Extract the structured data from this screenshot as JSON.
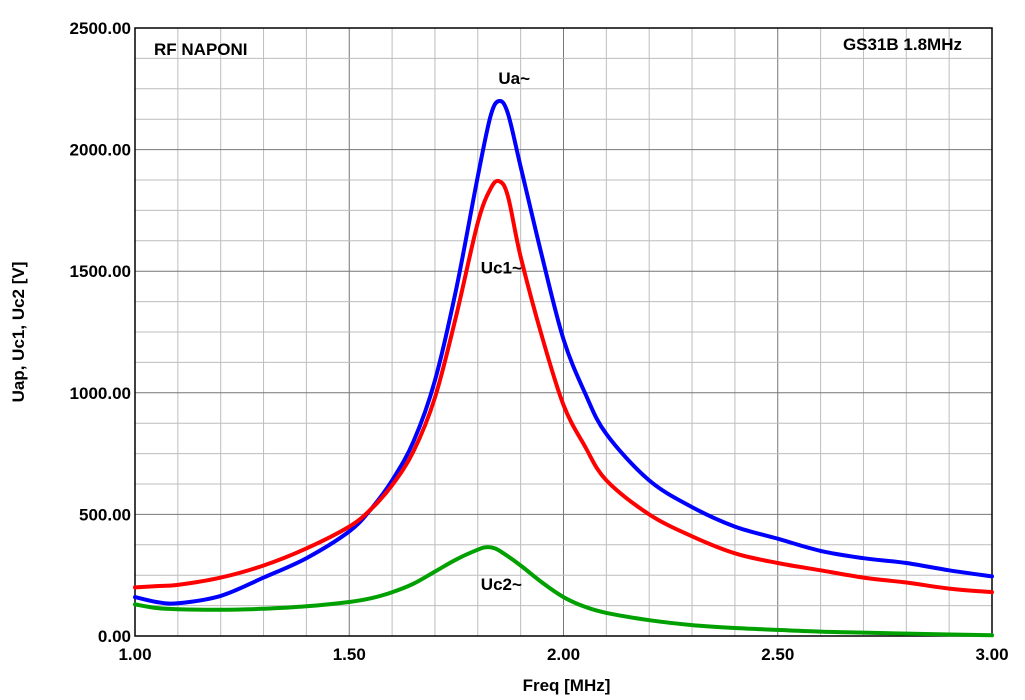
{
  "chart_data": {
    "type": "line",
    "title": "RF NAPONI",
    "subtitle": "GS31B 1.8MHz",
    "xlabel": "Freq [MHz]",
    "ylabel": "Uap, Uc1, Uc2 [V]",
    "xlim": [
      1.0,
      3.0
    ],
    "ylim": [
      0,
      2500
    ],
    "x_ticks": [
      "1.00",
      "1.50",
      "2.00",
      "2.50",
      "3.00"
    ],
    "y_ticks": [
      "0.00",
      "500.00",
      "1000.00",
      "1500.00",
      "2000.00",
      "2500.00"
    ],
    "grid": true,
    "series": [
      {
        "name": "Ua~",
        "color": "#0000ff",
        "x": [
          1.0,
          1.05,
          1.1,
          1.2,
          1.3,
          1.4,
          1.5,
          1.55,
          1.6,
          1.65,
          1.7,
          1.75,
          1.8,
          1.83,
          1.85,
          1.87,
          1.9,
          1.95,
          2.0,
          2.05,
          2.1,
          2.2,
          2.3,
          2.4,
          2.5,
          2.6,
          2.7,
          2.8,
          2.9,
          3.0
        ],
        "y": [
          160,
          140,
          135,
          165,
          240,
          320,
          430,
          520,
          640,
          800,
          1050,
          1430,
          1890,
          2140,
          2200,
          2150,
          1930,
          1560,
          1220,
          1000,
          830,
          640,
          530,
          450,
          400,
          350,
          320,
          300,
          270,
          245
        ]
      },
      {
        "name": "Uc1~",
        "color": "#ff0000",
        "x": [
          1.0,
          1.05,
          1.1,
          1.2,
          1.3,
          1.4,
          1.5,
          1.55,
          1.6,
          1.65,
          1.7,
          1.75,
          1.8,
          1.83,
          1.85,
          1.87,
          1.9,
          1.95,
          2.0,
          2.05,
          2.1,
          2.2,
          2.3,
          2.4,
          2.5,
          2.6,
          2.7,
          2.8,
          2.9,
          3.0
        ],
        "y": [
          200,
          205,
          210,
          240,
          290,
          360,
          450,
          520,
          620,
          760,
          980,
          1320,
          1700,
          1840,
          1870,
          1810,
          1560,
          1230,
          950,
          780,
          640,
          500,
          410,
          340,
          300,
          270,
          240,
          220,
          195,
          180
        ]
      },
      {
        "name": "Uc2~",
        "color": "#00a000",
        "x": [
          1.0,
          1.05,
          1.1,
          1.2,
          1.3,
          1.4,
          1.5,
          1.55,
          1.6,
          1.65,
          1.7,
          1.75,
          1.8,
          1.82,
          1.84,
          1.86,
          1.9,
          1.95,
          2.0,
          2.05,
          2.1,
          2.2,
          2.3,
          2.4,
          2.5,
          2.6,
          2.7,
          2.8,
          2.9,
          3.0
        ],
        "y": [
          130,
          115,
          110,
          108,
          112,
          122,
          140,
          155,
          180,
          215,
          265,
          315,
          355,
          365,
          360,
          340,
          290,
          220,
          160,
          120,
          95,
          65,
          45,
          33,
          25,
          18,
          14,
          10,
          6,
          3
        ]
      }
    ],
    "annotations": [
      {
        "text": "Ua~",
        "x": 1.885,
        "y": 2270
      },
      {
        "text": "Uc1~",
        "x": 1.855,
        "y": 1490
      },
      {
        "text": "Uc2~",
        "x": 1.855,
        "y": 190
      }
    ]
  }
}
